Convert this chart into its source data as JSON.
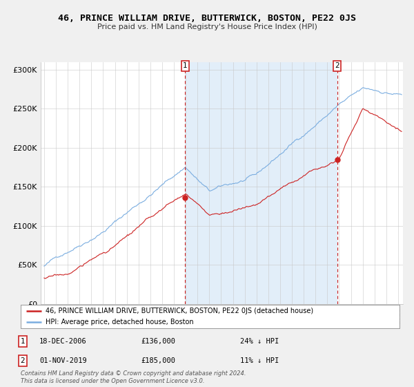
{
  "title": "46, PRINCE WILLIAM DRIVE, BUTTERWICK, BOSTON, PE22 0JS",
  "subtitle": "Price paid vs. HM Land Registry's House Price Index (HPI)",
  "hpi_color": "#7aade0",
  "hpi_fill_color": "#d0e4f5",
  "price_color": "#cc2222",
  "background_color": "#f0f0f0",
  "plot_bg_color": "#ffffff",
  "ylim": [
    0,
    310000
  ],
  "yticks": [
    0,
    50000,
    100000,
    150000,
    200000,
    250000,
    300000
  ],
  "ytick_labels": [
    "£0",
    "£50K",
    "£100K",
    "£150K",
    "£200K",
    "£250K",
    "£300K"
  ],
  "legend_line1": "46, PRINCE WILLIAM DRIVE, BUTTERWICK, BOSTON, PE22 0JS (detached house)",
  "legend_line2": "HPI: Average price, detached house, Boston",
  "annotation1_date": "18-DEC-2006",
  "annotation1_price": "£136,000",
  "annotation1_hpi": "24% ↓ HPI",
  "annotation2_date": "01-NOV-2019",
  "annotation2_price": "£185,000",
  "annotation2_hpi": "11% ↓ HPI",
  "footer": "Contains HM Land Registry data © Crown copyright and database right 2024.\nThis data is licensed under the Open Government Licence v3.0.",
  "sale1_x": 2006.96,
  "sale1_y": 136000,
  "sale2_x": 2019.83,
  "sale2_y": 185000,
  "xmin": 1995.0,
  "xmax": 2025.3
}
